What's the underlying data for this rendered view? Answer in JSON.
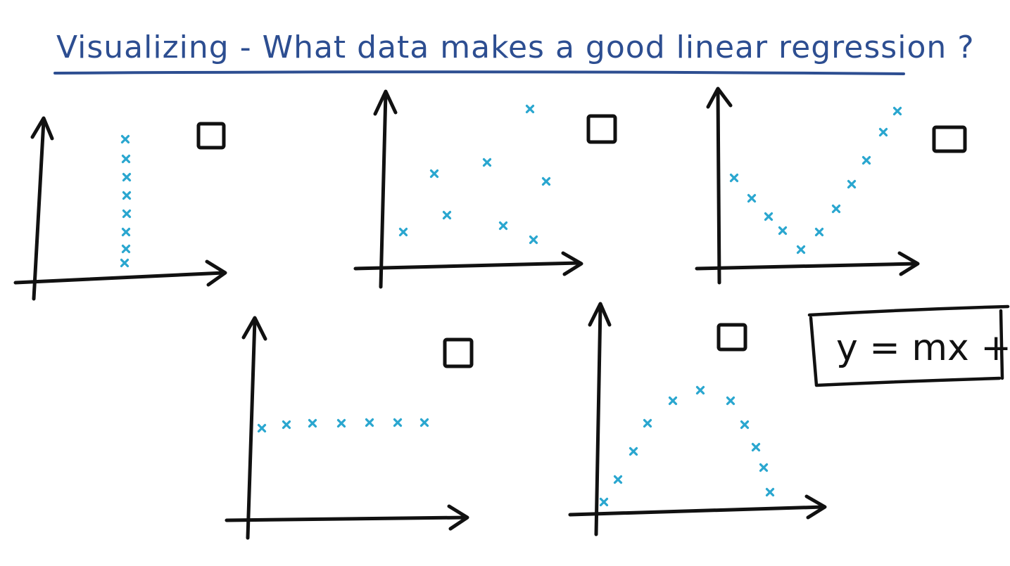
{
  "title": "Visualizing - What data makes a good linear regression ?",
  "formula": "y = mx + b",
  "colors": {
    "title_ink": "#2d4e91",
    "axis_ink": "#111111",
    "point_ink": "#29a6cf",
    "background": "#ffffff"
  },
  "plots": [
    {
      "id": "vertical-line",
      "checkbox": "unchecked"
    },
    {
      "id": "random-scatter",
      "checkbox": "unchecked"
    },
    {
      "id": "v-shape",
      "checkbox": "unchecked"
    },
    {
      "id": "horizontal-line",
      "checkbox": "unchecked"
    },
    {
      "id": "arch",
      "checkbox": "unchecked"
    }
  ]
}
